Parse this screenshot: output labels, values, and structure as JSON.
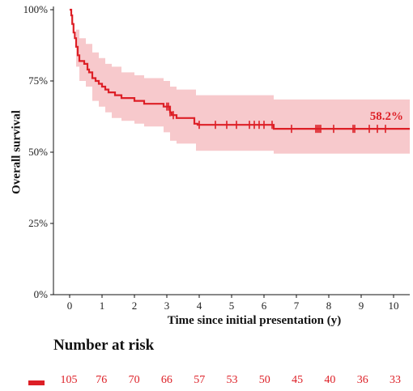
{
  "colors": {
    "line": "#dd1f26",
    "band": "#f7c9cc"
  },
  "chart_data": {
    "type": "line",
    "xlabel": "Time since initial presentation (y)",
    "ylabel": "Overall survival",
    "xlim": [
      -0.5,
      10.5
    ],
    "ylim": [
      0,
      100
    ],
    "x_ticks": [
      0,
      1,
      2,
      3,
      4,
      5,
      6,
      7,
      8,
      9,
      10
    ],
    "y_ticks": [
      0,
      25,
      50,
      75,
      100
    ],
    "y_tick_labels": [
      "0%",
      "25%",
      "50%",
      "75%",
      "100%"
    ],
    "grid": false,
    "annotation": {
      "text": "58.2%",
      "x": 10,
      "y": 58.2
    },
    "series": [
      {
        "steps": [
          [
            0,
            100
          ],
          [
            0.05,
            98
          ],
          [
            0.08,
            95
          ],
          [
            0.12,
            92
          ],
          [
            0.16,
            90
          ],
          [
            0.2,
            87
          ],
          [
            0.25,
            84
          ],
          [
            0.3,
            82
          ],
          [
            0.45,
            81
          ],
          [
            0.55,
            79
          ],
          [
            0.6,
            78
          ],
          [
            0.7,
            76
          ],
          [
            0.8,
            75
          ],
          [
            0.9,
            74
          ],
          [
            1.0,
            73
          ],
          [
            1.1,
            72
          ],
          [
            1.2,
            71
          ],
          [
            1.4,
            70
          ],
          [
            1.6,
            69
          ],
          [
            2.0,
            68
          ],
          [
            2.3,
            67
          ],
          [
            2.9,
            66
          ],
          [
            3.1,
            64
          ],
          [
            3.15,
            63
          ],
          [
            3.3,
            62
          ],
          [
            3.7,
            62
          ],
          [
            3.85,
            60
          ],
          [
            3.95,
            59.6
          ],
          [
            6.3,
            58.2
          ],
          [
            10.5,
            58.2
          ]
        ],
        "ci_upper": [
          [
            0,
            100
          ],
          [
            0.2,
            93
          ],
          [
            0.3,
            90
          ],
          [
            0.5,
            88
          ],
          [
            0.7,
            85
          ],
          [
            0.9,
            83
          ],
          [
            1.1,
            81
          ],
          [
            1.3,
            80
          ],
          [
            1.6,
            78
          ],
          [
            2.0,
            77
          ],
          [
            2.3,
            76
          ],
          [
            2.9,
            75
          ],
          [
            3.1,
            73
          ],
          [
            3.3,
            72
          ],
          [
            3.9,
            70
          ],
          [
            6.3,
            68.5
          ],
          [
            10.5,
            68.5
          ]
        ],
        "ci_lower": [
          [
            0,
            100
          ],
          [
            0.2,
            80
          ],
          [
            0.3,
            75
          ],
          [
            0.5,
            73
          ],
          [
            0.7,
            68
          ],
          [
            0.9,
            66
          ],
          [
            1.1,
            64
          ],
          [
            1.3,
            62
          ],
          [
            1.6,
            61
          ],
          [
            2.0,
            60
          ],
          [
            2.3,
            59
          ],
          [
            2.9,
            57
          ],
          [
            3.1,
            54
          ],
          [
            3.3,
            53
          ],
          [
            3.9,
            50.5
          ],
          [
            6.3,
            49.5
          ],
          [
            10.5,
            49.5
          ]
        ],
        "censor_times": [
          3.0,
          3.05,
          3.1,
          3.2,
          4.0,
          4.5,
          4.85,
          5.15,
          5.55,
          5.7,
          5.85,
          6.0,
          6.25,
          6.85,
          7.6,
          7.65,
          7.7,
          7.75,
          8.15,
          8.75,
          8.8,
          9.25,
          9.5,
          9.75
        ]
      }
    ],
    "risk_table": {
      "title": "Number at risk",
      "times": [
        0,
        1,
        2,
        3,
        4,
        5,
        6,
        7,
        8,
        9,
        10
      ],
      "values": [
        "105",
        "76",
        "70",
        "66",
        "57",
        "53",
        "50",
        "45",
        "40",
        "36",
        "33"
      ]
    }
  }
}
